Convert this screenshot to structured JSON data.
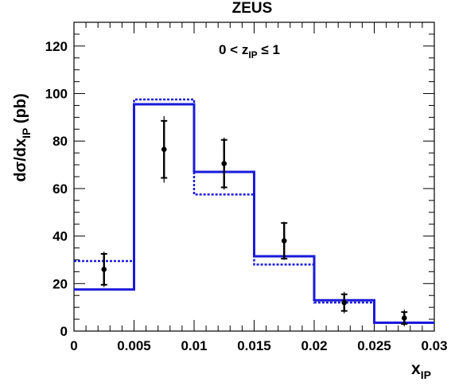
{
  "chart_data": {
    "type": "histogram",
    "title": "ZEUS",
    "annotation": "0 < z",
    "annotation_sub": "IP",
    "annotation_suffix": " ≤ 1",
    "xlabel": "x",
    "xlabel_sub": "IP",
    "ylabel_prefix": "dσ/dx",
    "ylabel_sub": "IP",
    "ylabel_suffix": " (pb)",
    "xlim": [
      0,
      0.03
    ],
    "ylim": [
      0,
      130
    ],
    "x_ticks": [
      0,
      0.005,
      0.01,
      0.015,
      0.02,
      0.025,
      0.03
    ],
    "x_tick_labels": [
      "0",
      "0.005",
      "0.01",
      "0.015",
      "0.02",
      "0.025",
      "0.03"
    ],
    "y_ticks": [
      0,
      20,
      40,
      60,
      80,
      100,
      120
    ],
    "y_tick_labels": [
      "0",
      "20",
      "40",
      "60",
      "80",
      "100",
      "120"
    ],
    "bin_edges": [
      0,
      0.005,
      0.01,
      0.015,
      0.02,
      0.025,
      0.03
    ],
    "series": [
      {
        "style": "solid",
        "color": "#1a1adb",
        "values": [
          17.5,
          95.5,
          67.0,
          31.5,
          13.0,
          3.5
        ]
      },
      {
        "style": "dotted",
        "color": "#1a1adb",
        "values": [
          29.5,
          97.5,
          57.5,
          28.0,
          12.0,
          3.5
        ]
      }
    ],
    "points": {
      "color": "#000000",
      "x": [
        0.0025,
        0.0075,
        0.0125,
        0.0175,
        0.0225,
        0.0275
      ],
      "y": [
        26.0,
        76.5,
        70.5,
        38.0,
        12.0,
        5.5
      ],
      "stat_err": [
        6.5,
        12.0,
        10.0,
        7.5,
        3.5,
        2.5
      ],
      "total_err": [
        7.5,
        14.0,
        11.0,
        8.0,
        4.5,
        3.5
      ]
    }
  }
}
